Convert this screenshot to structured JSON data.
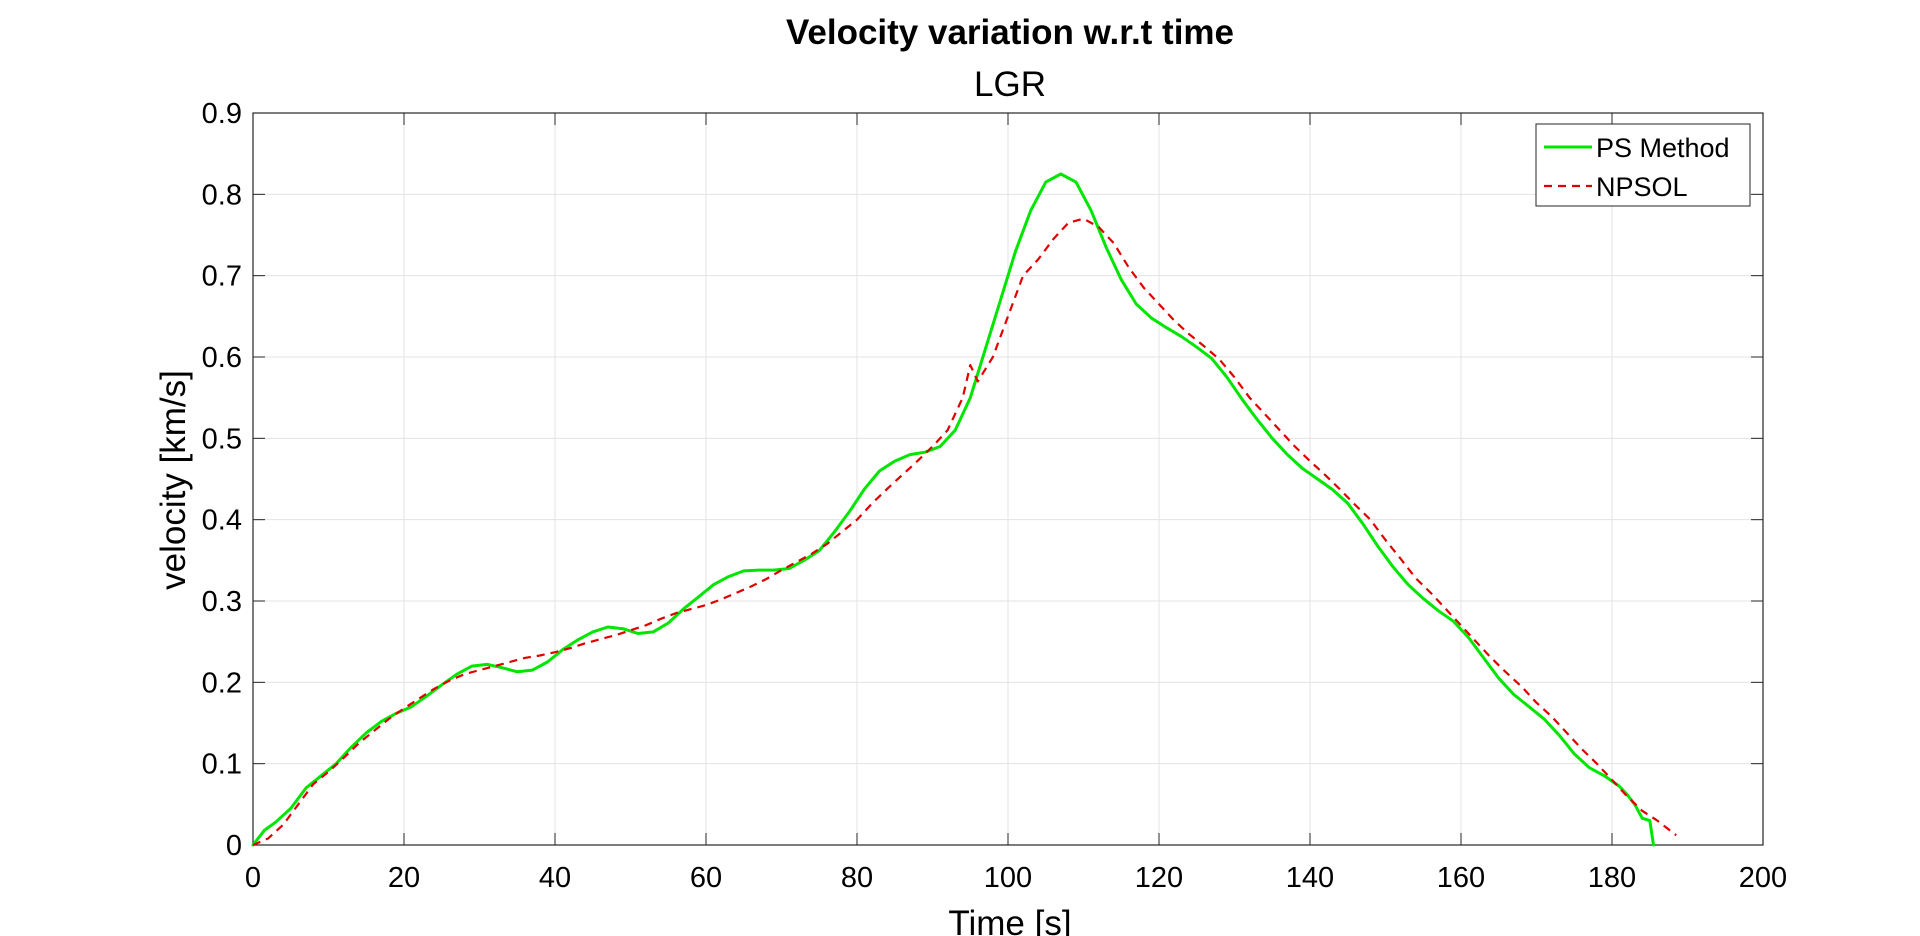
{
  "chart_data": {
    "type": "line",
    "title": "Velocity variation w.r.t time",
    "subtitle": "LGR",
    "xlabel": "Time [s]",
    "ylabel": "velocity [km/s]",
    "xlim": [
      0,
      200
    ],
    "ylim": [
      0,
      0.9
    ],
    "xticks": [
      "0",
      "20",
      "40",
      "60",
      "80",
      "100",
      "120",
      "140",
      "160",
      "180",
      "200"
    ],
    "yticks": [
      "0",
      "0.1",
      "0.2",
      "0.3",
      "0.4",
      "0.5",
      "0.6",
      "0.7",
      "0.8",
      "0.9"
    ],
    "grid": true,
    "legend_position": "top-right",
    "series": [
      {
        "name": "PS Method",
        "color": "#00e600",
        "style": "solid",
        "x": [
          0,
          1.5,
          3,
          5,
          7,
          9,
          11,
          13,
          15,
          17,
          19,
          21,
          23,
          25,
          27,
          29,
          31,
          33,
          35,
          37,
          39,
          41,
          43,
          45,
          47,
          49,
          51,
          53,
          55,
          57,
          59,
          61,
          63,
          65,
          67,
          69,
          71,
          73,
          75,
          77,
          79,
          81,
          83,
          85,
          87,
          89,
          91,
          93,
          95,
          97,
          99,
          101,
          103,
          105,
          107,
          109,
          111,
          113,
          115,
          117,
          119,
          121,
          123,
          125,
          127,
          129,
          131,
          133,
          135,
          137,
          139,
          141,
          143,
          145,
          147,
          149,
          151,
          153,
          155,
          157,
          159,
          161,
          163,
          165,
          167,
          169,
          171,
          173,
          175,
          177,
          179,
          181,
          182,
          183,
          184,
          185,
          185.5
        ],
        "y": [
          0,
          0.018,
          0.028,
          0.045,
          0.07,
          0.085,
          0.1,
          0.12,
          0.138,
          0.152,
          0.162,
          0.17,
          0.183,
          0.197,
          0.21,
          0.22,
          0.222,
          0.218,
          0.213,
          0.215,
          0.225,
          0.24,
          0.252,
          0.262,
          0.268,
          0.266,
          0.26,
          0.262,
          0.273,
          0.29,
          0.305,
          0.32,
          0.33,
          0.337,
          0.338,
          0.338,
          0.34,
          0.35,
          0.362,
          0.385,
          0.41,
          0.438,
          0.46,
          0.472,
          0.48,
          0.483,
          0.49,
          0.51,
          0.55,
          0.61,
          0.67,
          0.73,
          0.78,
          0.815,
          0.825,
          0.815,
          0.78,
          0.735,
          0.695,
          0.665,
          0.648,
          0.636,
          0.625,
          0.612,
          0.598,
          0.575,
          0.548,
          0.523,
          0.5,
          0.48,
          0.463,
          0.45,
          0.437,
          0.42,
          0.395,
          0.367,
          0.342,
          0.32,
          0.303,
          0.288,
          0.275,
          0.255,
          0.23,
          0.205,
          0.185,
          0.17,
          0.155,
          0.135,
          0.112,
          0.095,
          0.085,
          0.072,
          0.062,
          0.05,
          0.033,
          0.03,
          0.0
        ]
      },
      {
        "name": "NPSOL",
        "color": "#e00000",
        "style": "dashed",
        "x": [
          0,
          2,
          4,
          6,
          8,
          10,
          12,
          14,
          16,
          18,
          20,
          22,
          24,
          26,
          28,
          30,
          32,
          34,
          36,
          38,
          40,
          42,
          44,
          46,
          48,
          50,
          52,
          54,
          56,
          58,
          60,
          62,
          64,
          66,
          68,
          70,
          72,
          74,
          76,
          78,
          80,
          82,
          84,
          86,
          88,
          90,
          92,
          94,
          95,
          96,
          98,
          100,
          102,
          103,
          104,
          106,
          108,
          110,
          112,
          114,
          116,
          118,
          120,
          122,
          124,
          126,
          128,
          130,
          132,
          134,
          136,
          138,
          140,
          142,
          144,
          146,
          148,
          150,
          152,
          154,
          156,
          158,
          160,
          162,
          164,
          166,
          168,
          170,
          172,
          174,
          176,
          178,
          180,
          182,
          184,
          186,
          188.5
        ],
        "y": [
          0,
          0.008,
          0.025,
          0.05,
          0.075,
          0.09,
          0.107,
          0.125,
          0.14,
          0.155,
          0.168,
          0.18,
          0.192,
          0.202,
          0.21,
          0.215,
          0.22,
          0.225,
          0.23,
          0.233,
          0.237,
          0.242,
          0.248,
          0.253,
          0.258,
          0.264,
          0.27,
          0.278,
          0.285,
          0.29,
          0.295,
          0.302,
          0.31,
          0.318,
          0.327,
          0.338,
          0.348,
          0.358,
          0.37,
          0.385,
          0.4,
          0.42,
          0.438,
          0.455,
          0.472,
          0.49,
          0.51,
          0.55,
          0.59,
          0.57,
          0.6,
          0.65,
          0.7,
          0.71,
          0.72,
          0.745,
          0.765,
          0.77,
          0.76,
          0.74,
          0.71,
          0.685,
          0.665,
          0.645,
          0.628,
          0.613,
          0.597,
          0.575,
          0.55,
          0.53,
          0.51,
          0.49,
          0.472,
          0.455,
          0.437,
          0.418,
          0.4,
          0.375,
          0.352,
          0.328,
          0.31,
          0.29,
          0.27,
          0.25,
          0.23,
          0.212,
          0.195,
          0.175,
          0.158,
          0.138,
          0.118,
          0.1,
          0.08,
          0.06,
          0.042,
          0.03,
          0.012
        ]
      }
    ]
  }
}
